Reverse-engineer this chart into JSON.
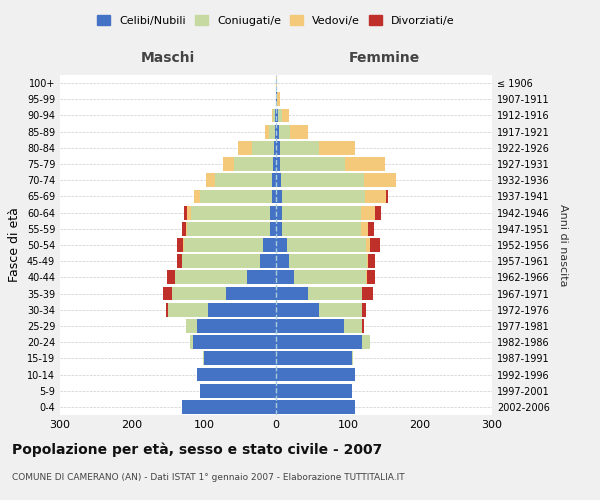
{
  "age_groups_bottom_to_top": [
    "0-4",
    "5-9",
    "10-14",
    "15-19",
    "20-24",
    "25-29",
    "30-34",
    "35-39",
    "40-44",
    "45-49",
    "50-54",
    "55-59",
    "60-64",
    "65-69",
    "70-74",
    "75-79",
    "80-84",
    "85-89",
    "90-94",
    "95-99",
    "100+"
  ],
  "birth_years_bottom_to_top": [
    "2002-2006",
    "1997-2001",
    "1992-1996",
    "1987-1991",
    "1982-1986",
    "1977-1981",
    "1972-1976",
    "1967-1971",
    "1962-1966",
    "1957-1961",
    "1952-1956",
    "1947-1951",
    "1942-1946",
    "1937-1941",
    "1932-1936",
    "1927-1931",
    "1922-1926",
    "1917-1921",
    "1912-1916",
    "1907-1911",
    "≤ 1906"
  ],
  "males": {
    "celibe": [
      130,
      105,
      110,
      100,
      115,
      110,
      95,
      70,
      40,
      22,
      18,
      8,
      8,
      6,
      5,
      4,
      3,
      2,
      1,
      0,
      0
    ],
    "coniugato": [
      0,
      0,
      0,
      1,
      5,
      15,
      55,
      75,
      100,
      108,
      110,
      115,
      110,
      100,
      80,
      55,
      30,
      8,
      3,
      0,
      0
    ],
    "vedovo": [
      0,
      0,
      0,
      0,
      0,
      0,
      0,
      0,
      0,
      0,
      1,
      2,
      5,
      8,
      12,
      15,
      20,
      5,
      2,
      0,
      0
    ],
    "divorziato": [
      0,
      0,
      0,
      0,
      0,
      0,
      3,
      12,
      12,
      8,
      8,
      5,
      5,
      0,
      0,
      0,
      0,
      0,
      0,
      0,
      0
    ]
  },
  "females": {
    "nubile": [
      110,
      105,
      110,
      105,
      120,
      95,
      60,
      45,
      25,
      18,
      15,
      8,
      8,
      8,
      7,
      6,
      5,
      4,
      3,
      2,
      0
    ],
    "coniugata": [
      0,
      0,
      0,
      2,
      10,
      25,
      60,
      75,
      100,
      108,
      110,
      110,
      110,
      115,
      115,
      90,
      55,
      15,
      5,
      0,
      0
    ],
    "vedova": [
      0,
      0,
      0,
      0,
      0,
      0,
      0,
      0,
      1,
      2,
      5,
      10,
      20,
      30,
      45,
      55,
      50,
      25,
      10,
      3,
      1
    ],
    "divorziata": [
      0,
      0,
      0,
      0,
      0,
      2,
      5,
      15,
      12,
      10,
      15,
      8,
      8,
      2,
      0,
      0,
      0,
      0,
      0,
      0,
      0
    ]
  },
  "colors": {
    "celibe": "#4472C4",
    "coniugato": "#c5d9a0",
    "vedovo": "#f5c97a",
    "divorziato": "#c0302a"
  },
  "xlim": 300,
  "title": "Popolazione per età, sesso e stato civile - 2007",
  "subtitle": "COMUNE DI CAMERANO (AN) - Dati ISTAT 1° gennaio 2007 - Elaborazione TUTTITALIA.IT",
  "ylabel": "Fasce di età",
  "ylabel_right": "Anni di nascita",
  "legend_labels": [
    "Celibi/Nubili",
    "Coniugati/e",
    "Vedovi/e",
    "Divorziati/e"
  ],
  "background_color": "#f0f0f0",
  "plot_bg": "#ffffff",
  "maschi_label": "Maschi",
  "femmine_label": "Femmine"
}
